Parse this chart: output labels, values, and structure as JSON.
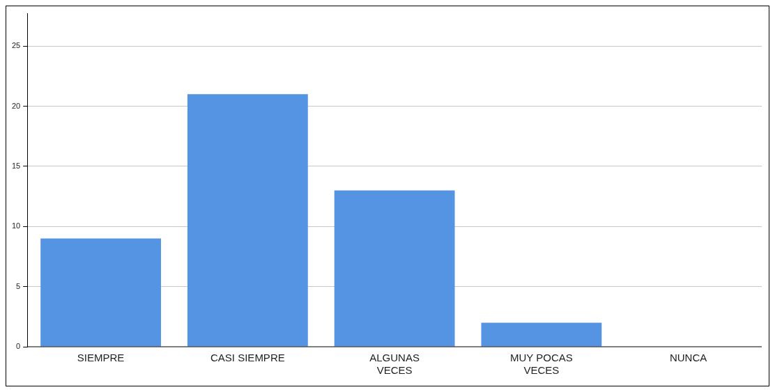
{
  "chart_data": {
    "type": "bar",
    "categories": [
      "SIEMPRE",
      "CASI SIEMPRE",
      "ALGUNAS VECES",
      "MUY POCAS VECES",
      "NUNCA"
    ],
    "values": [
      9,
      21,
      13,
      2,
      0
    ],
    "color": "#5594e3",
    "ylim": [
      0,
      27.7
    ],
    "yticks": [
      0,
      5,
      10,
      15,
      20,
      25
    ],
    "grid": "y",
    "legend": false
  }
}
